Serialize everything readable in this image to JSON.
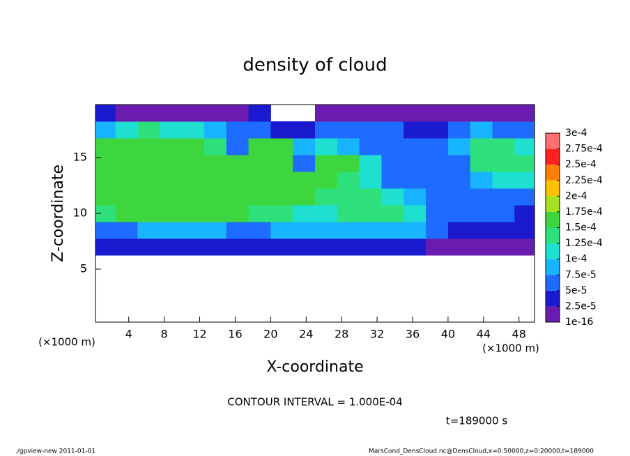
{
  "chart_data": {
    "type": "heatmap",
    "title": "density of cloud",
    "x_label": "X-coordinate",
    "y_label": "Z-coordinate",
    "x_unit": "(×1000 m)",
    "note": "CONTOUR INTERVAL = 1.000E-04",
    "time_label": "t=189000 s",
    "footer_left": "./gpview-new  2011-01-01",
    "footer_right": "MarsCond_DensCloud.nc@DensCloud,x=0:50000,z=0:20000,t=189000",
    "xlim": [
      0.25,
      49.75
    ],
    "ylim": [
      0.25,
      19.75
    ],
    "xticks": [
      4,
      8,
      12,
      16,
      20,
      24,
      28,
      32,
      36,
      40,
      44,
      48
    ],
    "yticks": [
      5,
      10,
      15
    ],
    "x_bins": [
      0.25,
      2.5,
      5,
      7.5,
      10,
      12.5,
      15,
      17.5,
      20,
      22.5,
      25,
      27.5,
      30,
      32.5,
      35,
      37.5,
      40,
      42.5,
      45,
      47.5,
      49.75
    ],
    "y_bins": [
      6.25,
      7.75,
      9.25,
      10.75,
      12.25,
      13.75,
      15.25,
      16.75,
      18.25,
      19.75
    ],
    "values": [
      [
        3e-05,
        3e-05,
        3.5e-05,
        3.5e-05,
        3.5e-05,
        3.5e-05,
        3e-05,
        3e-05,
        2.5e-05,
        3e-05,
        3.5e-05,
        4e-05,
        4e-05,
        4e-05,
        4e-05,
        2e-05,
        1.5e-05,
        2e-05,
        2e-05,
        2e-05
      ],
      [
        7e-05,
        7e-05,
        7.5e-05,
        7.5e-05,
        7.5e-05,
        7.5e-05,
        7e-05,
        7e-05,
        8e-05,
        8.5e-05,
        9e-05,
        9e-05,
        9e-05,
        9e-05,
        8.5e-05,
        5e-05,
        4e-05,
        4.5e-05,
        4e-05,
        4e-05
      ],
      [
        0.00013,
        0.00015,
        0.00015,
        0.00015,
        0.00015,
        0.00015,
        0.00015,
        0.000145,
        0.00013,
        0.00011,
        0.00012,
        0.00013,
        0.00013,
        0.00013,
        0.00011,
        6e-05,
        5e-05,
        6e-05,
        5e-05,
        4.5e-05
      ],
      [
        0.00016,
        0.00016,
        0.00016,
        0.00016,
        0.00016,
        0.00016,
        0.00016,
        0.00016,
        0.000155,
        0.00015,
        0.00013,
        0.00014,
        0.000135,
        0.00012,
        8e-05,
        6e-05,
        5e-05,
        6e-05,
        5e-05,
        6e-05
      ],
      [
        0.000165,
        0.000165,
        0.000165,
        0.000165,
        0.000165,
        0.000165,
        0.000165,
        0.000165,
        0.000165,
        0.00016,
        0.000155,
        0.00013,
        0.0001,
        7e-05,
        6e-05,
        6e-05,
        5e-05,
        9e-05,
        0.0001,
        0.00011
      ],
      [
        0.00016,
        0.000165,
        0.00017,
        0.00017,
        0.00017,
        0.00017,
        0.000165,
        0.00016,
        0.00016,
        5e-05,
        0.00015,
        0.00015,
        0.00012,
        7e-05,
        6e-05,
        7e-05,
        6e-05,
        0.00013,
        0.00014,
        0.00014
      ],
      [
        0.00015,
        0.00016,
        0.00016,
        0.00016,
        0.000155,
        0.00013,
        7e-05,
        0.00015,
        0.00015,
        8e-05,
        0.00011,
        9e-05,
        7e-05,
        7e-05,
        7e-05,
        6e-05,
        8e-05,
        0.00013,
        0.000135,
        0.00012
      ],
      [
        9e-05,
        0.00012,
        0.000125,
        0.00012,
        0.00011,
        8e-05,
        5e-05,
        6e-05,
        4e-05,
        4e-05,
        6e-05,
        6e-05,
        5e-05,
        5e-05,
        4e-05,
        4e-05,
        7e-05,
        8e-05,
        7e-05,
        5e-05
      ],
      [
        2.5e-05,
        2e-05,
        2e-05,
        2e-05,
        2e-05,
        2e-05,
        2e-05,
        3e-05,
        null,
        null,
        2e-05,
        2e-05,
        2e-05,
        2e-05,
        2e-05,
        2e-05,
        2e-05,
        2e-05,
        2e-05,
        2e-05
      ]
    ],
    "levels": [
      {
        "value": 1e-16,
        "label": "1e-16"
      },
      {
        "value": 2.5e-05,
        "label": "2.5e-5"
      },
      {
        "value": 5e-05,
        "label": "5e-5"
      },
      {
        "value": 7.5e-05,
        "label": "7.5e-5"
      },
      {
        "value": 0.0001,
        "label": "1e-4"
      },
      {
        "value": 0.000125,
        "label": "1.25e-4"
      },
      {
        "value": 0.00015,
        "label": "1.5e-4"
      },
      {
        "value": 0.000175,
        "label": "1.75e-4"
      },
      {
        "value": 0.0002,
        "label": "2e-4"
      },
      {
        "value": 0.000225,
        "label": "2.25e-4"
      },
      {
        "value": 0.00025,
        "label": "2.5e-4"
      },
      {
        "value": 0.000275,
        "label": "2.75e-4"
      },
      {
        "value": 0.0003,
        "label": "3e-4"
      }
    ],
    "colors": [
      "#6a1cb0",
      "#1a1ad0",
      "#1e6cff",
      "#19b4ff",
      "#1ee0d0",
      "#2ee07c",
      "#3ed63e",
      "#a6e020",
      "#ffc000",
      "#ff8000",
      "#ff2020",
      "#ff7070"
    ]
  }
}
